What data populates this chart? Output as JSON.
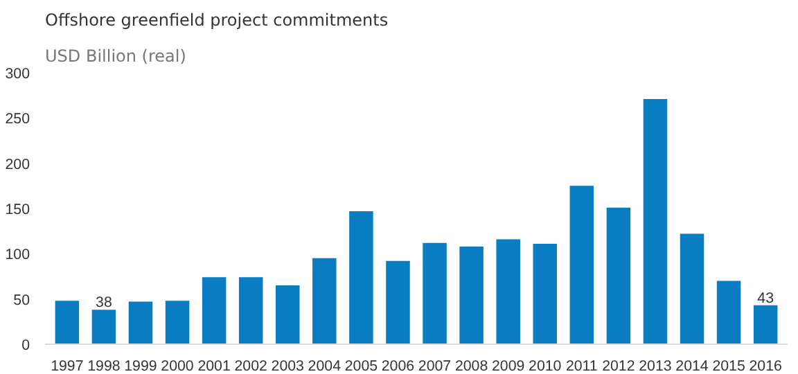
{
  "chart_data": {
    "type": "bar",
    "title": "Offshore greenfield project commitments",
    "subtitle": "USD Billion (real)",
    "categories": [
      "1997",
      "1998",
      "1999",
      "2000",
      "2001",
      "2002",
      "2003",
      "2004",
      "2005",
      "2006",
      "2007",
      "2008",
      "2009",
      "2010",
      "2011",
      "2012",
      "2013",
      "2014",
      "2015",
      "2016"
    ],
    "values": [
      48,
      38,
      47,
      48,
      74,
      74,
      65,
      95,
      147,
      92,
      112,
      108,
      116,
      111,
      175,
      151,
      271,
      122,
      70,
      43
    ],
    "value_labels": [
      null,
      "38",
      null,
      null,
      null,
      null,
      null,
      null,
      null,
      null,
      null,
      null,
      null,
      null,
      null,
      null,
      null,
      null,
      null,
      "43"
    ],
    "color": "#0a7dc2",
    "ylim": [
      0,
      300
    ],
    "yticks": [
      0,
      50,
      100,
      150,
      200,
      250,
      300
    ],
    "grid": false
  }
}
